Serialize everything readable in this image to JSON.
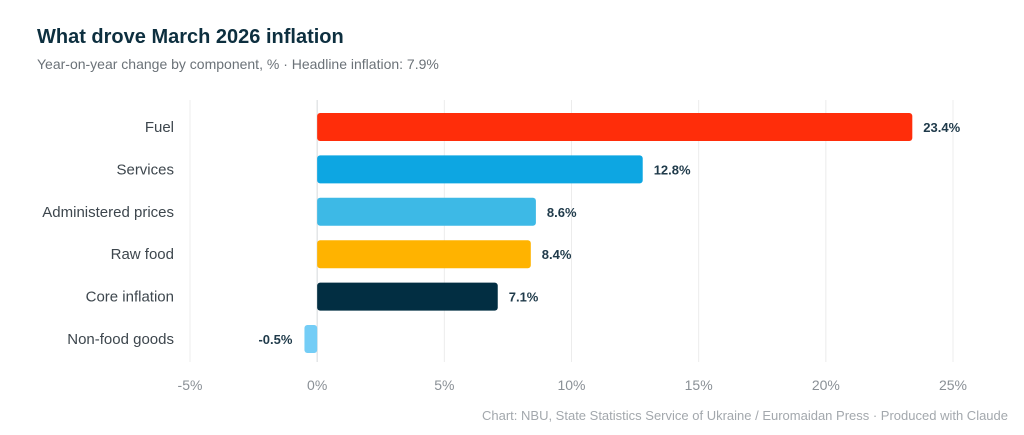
{
  "title": "What drove March 2026 inflation",
  "subtitle": "Year-on-year change by component, % · Headline inflation: 7.9%",
  "source": "Chart: NBU, State Statistics Service of Ukraine / Euromaidan Press · Produced with Claude",
  "chart_data": {
    "type": "bar",
    "orientation": "horizontal",
    "title": "What drove March 2026 inflation",
    "subtitle": "Year-on-year change by component, % · Headline inflation: 7.9%",
    "categories": [
      "Fuel",
      "Services",
      "Administered prices",
      "Raw food",
      "Core inflation",
      "Non-food goods"
    ],
    "values": [
      23.4,
      12.8,
      8.6,
      8.4,
      7.1,
      -0.5
    ],
    "value_labels": [
      "23.4%",
      "12.8%",
      "8.6%",
      "8.4%",
      "7.1%",
      "-0.5%"
    ],
    "colors": [
      "#ff2d0a",
      "#0da6e2",
      "#3db9e6",
      "#ffb300",
      "#022e42",
      "#74cdf6"
    ],
    "xlim": [
      -5,
      25
    ],
    "xticks": [
      -5,
      0,
      5,
      10,
      15,
      20,
      25
    ],
    "xtick_labels": [
      "-5%",
      "0%",
      "5%",
      "10%",
      "15%",
      "20%",
      "25%"
    ],
    "grid": "vertical",
    "legend": "none"
  }
}
